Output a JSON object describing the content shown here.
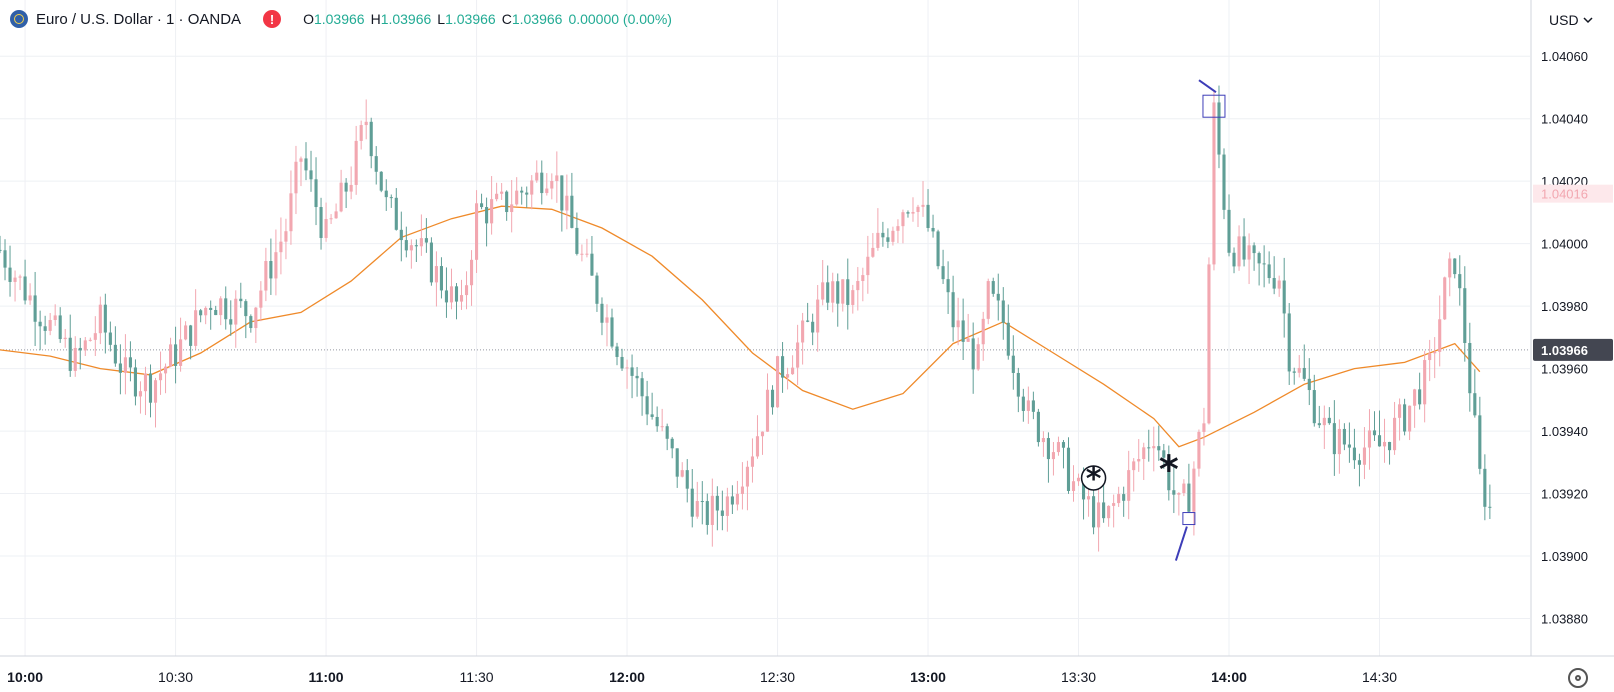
{
  "legend": {
    "symbol": "Euro / U.S. Dollar · 1 · OANDA",
    "open_label": "O",
    "open": "1.03966",
    "high_label": "H",
    "high": "1.03966",
    "low_label": "L",
    "low": "1.03966",
    "close_label": "C",
    "close": "1.03966",
    "change": "0.00000 (0.00%)"
  },
  "toolbar": {
    "currency": "USD"
  },
  "colors": {
    "up": "#f2a7b0",
    "down": "#5f9e96",
    "ma": "#ef8a2a",
    "grid": "#eef0f4",
    "axis_text": "#131722",
    "drawing": "#3d3db8",
    "price_label_bg": "#434651"
  },
  "icons": {
    "warning": "exclamation-icon",
    "currency_menu": "chevron-down-icon",
    "settings": "gear-icon"
  },
  "chart_data": {
    "type": "candlestick",
    "y_ticks": [
      "1.04060",
      "1.04040",
      "1.04020",
      "1.04000",
      "1.03980",
      "1.03960",
      "1.03940",
      "1.03920",
      "1.03900",
      "1.03880"
    ],
    "x_ticks": [
      "10:00",
      "10:30",
      "11:00",
      "11:30",
      "12:00",
      "12:30",
      "13:00",
      "13:30",
      "14:00",
      "14:30"
    ],
    "x_range": [
      "09:55",
      "15:00"
    ],
    "y_range": [
      1.03868,
      1.04078
    ],
    "last_price": "1.03966",
    "reference_price": "1.04016",
    "grid": true,
    "anchors": [
      [
        "09:55",
        1.03998
      ],
      [
        "10:00",
        1.03985
      ],
      [
        "10:10",
        1.03962
      ],
      [
        "10:15",
        1.03975
      ],
      [
        "10:20",
        1.03958
      ],
      [
        "10:25",
        1.03955
      ],
      [
        "10:30",
        1.03965
      ],
      [
        "10:37",
        1.03982
      ],
      [
        "10:45",
        1.03978
      ],
      [
        "10:52",
        1.04005
      ],
      [
        "10:55",
        1.04028
      ],
      [
        "11:00",
        1.04002
      ],
      [
        "11:05",
        1.04022
      ],
      [
        "11:08",
        1.0404
      ],
      [
        "11:12",
        1.04012
      ],
      [
        "11:20",
        1.03995
      ],
      [
        "11:27",
        1.03978
      ],
      [
        "11:30",
        1.0401
      ],
      [
        "11:35",
        1.04012
      ],
      [
        "11:40",
        1.04018
      ],
      [
        "11:45",
        1.04025
      ],
      [
        "11:50",
        1.03999
      ],
      [
        "11:55",
        1.0398
      ],
      [
        "11:58",
        1.03968
      ],
      [
        "12:05",
        1.03945
      ],
      [
        "12:10",
        1.03928
      ],
      [
        "12:15",
        1.03912
      ],
      [
        "12:20",
        1.03918
      ],
      [
        "12:25",
        1.03935
      ],
      [
        "12:30",
        1.03958
      ],
      [
        "12:35",
        1.0397
      ],
      [
        "12:40",
        1.03985
      ],
      [
        "12:45",
        1.03982
      ],
      [
        "12:50",
        1.04
      ],
      [
        "12:55",
        1.04012
      ],
      [
        "12:57",
        1.04015
      ],
      [
        "13:00",
        1.04005
      ],
      [
        "13:05",
        1.03975
      ],
      [
        "13:10",
        1.03962
      ],
      [
        "13:12",
        1.03983
      ],
      [
        "13:15",
        1.03975
      ],
      [
        "13:20",
        1.03945
      ],
      [
        "13:25",
        1.03935
      ],
      [
        "13:30",
        1.0392
      ],
      [
        "13:35",
        1.0391
      ],
      [
        "13:40",
        1.03925
      ],
      [
        "13:45",
        1.0394
      ],
      [
        "13:50",
        1.03915
      ],
      [
        "13:52",
        1.0392
      ],
      [
        "13:55",
        1.03945
      ],
      [
        "13:57",
        1.04042
      ],
      [
        "14:00",
        1.04
      ],
      [
        "14:05",
        1.03992
      ],
      [
        "14:10",
        1.0399
      ],
      [
        "14:12",
        1.03965
      ],
      [
        "14:15",
        1.03955
      ],
      [
        "14:20",
        1.03938
      ],
      [
        "14:25",
        1.03935
      ],
      [
        "14:30",
        1.03935
      ],
      [
        "14:35",
        1.03945
      ],
      [
        "14:40",
        1.0396
      ],
      [
        "14:43",
        1.03985
      ],
      [
        "14:45",
        1.03995
      ],
      [
        "14:47",
        1.0397
      ],
      [
        "14:50",
        1.03925
      ],
      [
        "14:52",
        1.03915
      ]
    ],
    "moving_average": [
      [
        "09:55",
        1.03966
      ],
      [
        "10:05",
        1.03964
      ],
      [
        "10:15",
        1.0396
      ],
      [
        "10:25",
        1.03958
      ],
      [
        "10:35",
        1.03965
      ],
      [
        "10:45",
        1.03975
      ],
      [
        "10:55",
        1.03978
      ],
      [
        "11:05",
        1.03988
      ],
      [
        "11:15",
        1.04002
      ],
      [
        "11:25",
        1.04008
      ],
      [
        "11:35",
        1.04012
      ],
      [
        "11:45",
        1.04011
      ],
      [
        "11:55",
        1.04005
      ],
      [
        "12:05",
        1.03996
      ],
      [
        "12:15",
        1.03982
      ],
      [
        "12:25",
        1.03965
      ],
      [
        "12:35",
        1.03953
      ],
      [
        "12:45",
        1.03947
      ],
      [
        "12:55",
        1.03952
      ],
      [
        "13:05",
        1.03968
      ],
      [
        "13:15",
        1.03975
      ],
      [
        "13:25",
        1.03965
      ],
      [
        "13:35",
        1.03955
      ],
      [
        "13:45",
        1.03944
      ],
      [
        "13:50",
        1.03935
      ],
      [
        "13:55",
        1.03938
      ],
      [
        "14:05",
        1.03946
      ],
      [
        "14:15",
        1.03955
      ],
      [
        "14:25",
        1.0396
      ],
      [
        "14:35",
        1.03962
      ],
      [
        "14:45",
        1.03968
      ],
      [
        "14:50",
        1.03959
      ]
    ],
    "annotations": [
      {
        "type": "box",
        "time": "13:57",
        "price": 1.04044,
        "label": "high-marker"
      },
      {
        "type": "box",
        "time": "13:52",
        "price": 1.03912,
        "label": "low-marker"
      }
    ]
  }
}
